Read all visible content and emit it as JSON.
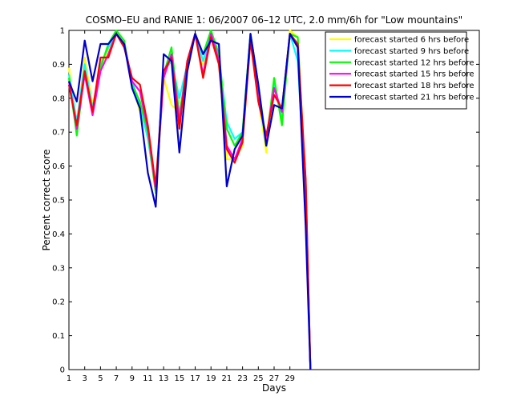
{
  "chart_data": {
    "type": "line",
    "title": "COSMO–EU and RANIE 1: 06/2007 06–12 UTC, 2.0 mm/6h for \"Low mountains\"",
    "xlabel": "Days",
    "ylabel": "Percent correct score",
    "xlim": [
      1,
      53
    ],
    "ylim": [
      0,
      1
    ],
    "x_ticks": [
      1,
      3,
      5,
      7,
      9,
      11,
      13,
      15,
      17,
      19,
      21,
      23,
      25,
      27,
      29
    ],
    "y_ticks": [
      0,
      0.1,
      0.2,
      0.3,
      0.4,
      0.5,
      0.6,
      0.7,
      0.8,
      0.9,
      1
    ],
    "y_tick_labels": [
      "0",
      "0.1",
      "0.2",
      "0.3",
      "0.4",
      "0.5",
      "0.6",
      "0.7",
      "0.8",
      "0.9",
      "1"
    ],
    "grid": false,
    "legend_position": "top-right",
    "x": [
      1,
      2,
      3,
      4,
      5,
      6,
      7,
      8,
      9,
      10,
      11,
      12,
      13,
      14,
      15,
      16,
      17,
      18,
      19,
      20,
      21,
      22,
      23,
      24,
      25,
      26,
      27,
      28,
      29,
      30,
      31,
      31.6
    ],
    "series": [
      {
        "name": "forecast started 6 hrs before",
        "color": "#ffff00",
        "values": [
          0.89,
          0.72,
          0.92,
          0.78,
          0.88,
          0.94,
          0.99,
          0.97,
          0.84,
          0.76,
          0.69,
          0.52,
          0.86,
          0.78,
          0.76,
          0.88,
          0.99,
          0.9,
          0.99,
          0.9,
          0.62,
          0.62,
          0.66,
          0.99,
          0.8,
          0.64,
          0.86,
          0.72,
          1.0,
          0.98,
          0.55,
          0.0
        ]
      },
      {
        "name": "forecast started 9 hrs before",
        "color": "#00ffff",
        "values": [
          0.87,
          0.73,
          0.9,
          0.77,
          0.9,
          0.95,
          0.99,
          0.96,
          0.85,
          0.78,
          0.68,
          0.53,
          0.88,
          0.91,
          0.8,
          0.9,
          0.99,
          0.91,
          0.99,
          0.92,
          0.73,
          0.68,
          0.7,
          0.99,
          0.82,
          0.66,
          0.84,
          0.74,
          0.99,
          0.91,
          0.5,
          0.0
        ]
      },
      {
        "name": "forecast started 12 hrs before",
        "color": "#00ff00",
        "values": [
          0.86,
          0.69,
          0.88,
          0.76,
          0.89,
          0.96,
          1.0,
          0.97,
          0.84,
          0.79,
          0.7,
          0.52,
          0.87,
          0.95,
          0.75,
          0.9,
          0.99,
          0.93,
          1.0,
          0.93,
          0.71,
          0.66,
          0.7,
          0.99,
          0.84,
          0.67,
          0.86,
          0.72,
          0.99,
          0.98,
          0.52,
          0.0
        ]
      },
      {
        "name": "forecast started 15 hrs before",
        "color": "#ff00ff",
        "values": [
          0.85,
          0.71,
          0.87,
          0.75,
          0.88,
          0.93,
          0.99,
          0.96,
          0.85,
          0.82,
          0.71,
          0.53,
          0.86,
          0.93,
          0.73,
          0.91,
          0.99,
          0.87,
          0.99,
          0.91,
          0.66,
          0.62,
          0.68,
          0.98,
          0.8,
          0.68,
          0.83,
          0.76,
          0.99,
          0.95,
          0.55,
          0.0
        ]
      },
      {
        "name": "forecast started 18 hrs before",
        "color": "#ff0000",
        "values": [
          0.84,
          0.72,
          0.88,
          0.76,
          0.92,
          0.92,
          0.99,
          0.95,
          0.86,
          0.84,
          0.72,
          0.54,
          0.88,
          0.92,
          0.71,
          0.91,
          0.99,
          0.86,
          0.98,
          0.9,
          0.65,
          0.61,
          0.67,
          0.97,
          0.79,
          0.69,
          0.81,
          0.77,
          0.99,
          0.96,
          0.56,
          0.0
        ]
      },
      {
        "name": "forecast started 21 hrs before",
        "color": "#0000cc",
        "values": [
          0.85,
          0.79,
          0.97,
          0.85,
          0.96,
          0.96,
          0.99,
          0.96,
          0.83,
          0.77,
          0.58,
          0.48,
          0.93,
          0.91,
          0.64,
          0.88,
          0.99,
          0.93,
          0.97,
          0.96,
          0.54,
          0.65,
          0.69,
          0.99,
          0.84,
          0.66,
          0.78,
          0.77,
          0.99,
          0.95,
          0.42,
          0.0
        ]
      }
    ]
  }
}
